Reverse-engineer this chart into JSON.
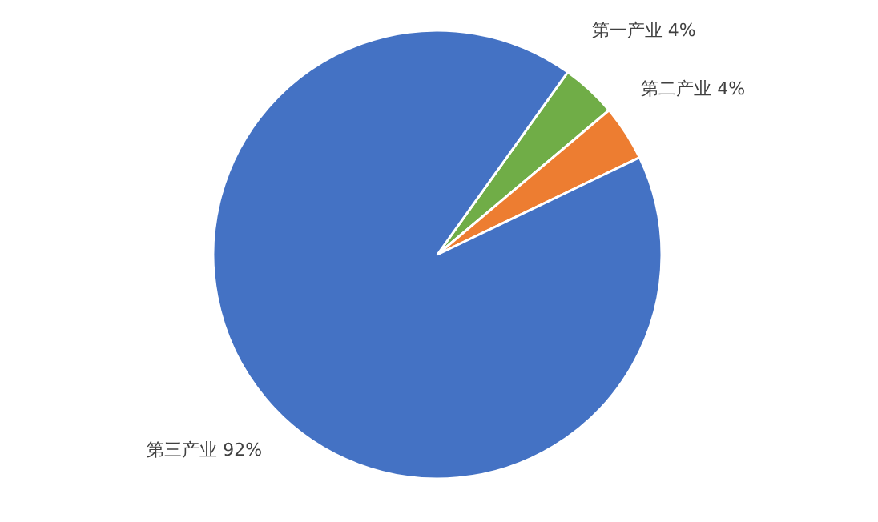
{
  "chart_data": {
    "type": "pie",
    "categories": [
      "第一产业",
      "第二产业",
      "第三产业"
    ],
    "values": [
      4,
      4,
      92
    ],
    "colors": [
      "#70ad47",
      "#ed7d31",
      "#4472c4"
    ],
    "value_labels": [
      "4%",
      "4%",
      "92%"
    ]
  }
}
